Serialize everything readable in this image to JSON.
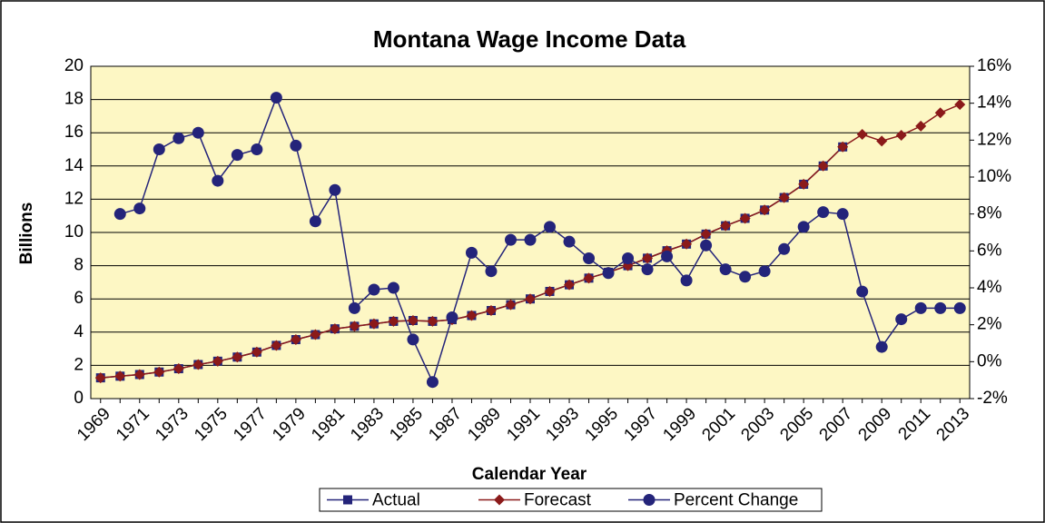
{
  "chart_data": {
    "type": "line",
    "title": "Montana Wage Income Data",
    "y_label": "Billions",
    "x_label": "Calendar Year",
    "categories": [
      "1969",
      null,
      "1971",
      null,
      "1973",
      null,
      "1975",
      null,
      "1977",
      null,
      "1979",
      null,
      "1981",
      null,
      "1983",
      null,
      "1985",
      null,
      "1987",
      null,
      "1989",
      null,
      "1991",
      null,
      "1993",
      null,
      "1995",
      null,
      "1997",
      null,
      "1999",
      null,
      "2001",
      null,
      "2003",
      null,
      "2005",
      null,
      "2007",
      null,
      "2009",
      null,
      "2011",
      null,
      "2013"
    ],
    "series": [
      {
        "name": "Actual",
        "color": "#24247a",
        "marker": "square",
        "values": [
          1.25,
          1.35,
          1.45,
          1.6,
          1.8,
          2.05,
          2.25,
          2.5,
          2.8,
          3.2,
          3.55,
          3.85,
          4.2,
          4.35,
          4.5,
          4.65,
          4.7,
          4.65,
          4.75,
          5.0,
          5.3,
          5.65,
          6.0,
          6.45,
          6.85,
          7.25,
          7.6,
          8.0,
          8.45,
          8.9,
          9.3,
          9.9,
          10.4,
          10.85,
          11.35,
          12.1,
          12.9,
          14.0,
          15.15,
          null,
          null,
          null,
          null,
          null,
          null
        ]
      },
      {
        "name": "Forecast",
        "color": "#8b1a1a",
        "marker": "diamond",
        "values": [
          1.25,
          1.35,
          1.45,
          1.6,
          1.8,
          2.05,
          2.25,
          2.5,
          2.8,
          3.2,
          3.55,
          3.85,
          4.2,
          4.35,
          4.5,
          4.65,
          4.7,
          4.65,
          4.75,
          5.0,
          5.3,
          5.65,
          6.0,
          6.45,
          6.85,
          7.25,
          7.6,
          8.0,
          8.45,
          8.9,
          9.3,
          9.9,
          10.4,
          10.85,
          11.35,
          12.1,
          12.9,
          14.0,
          15.15,
          15.9,
          15.5,
          15.85,
          16.4,
          17.2,
          17.7
        ]
      },
      {
        "name": "Percent Change",
        "color": "#24247a",
        "marker": "circle",
        "axis": "y2",
        "values": [
          null,
          8.0,
          8.3,
          11.5,
          12.1,
          12.4,
          9.8,
          11.2,
          11.5,
          14.3,
          11.7,
          7.6,
          9.3,
          2.9,
          3.9,
          4.0,
          1.2,
          -1.1,
          2.4,
          5.9,
          4.9,
          6.6,
          6.6,
          7.3,
          6.5,
          5.6,
          4.8,
          5.6,
          5.0,
          5.7,
          4.4,
          6.3,
          5.0,
          4.6,
          4.9,
          6.1,
          7.3,
          8.1,
          8.0,
          3.8,
          0.8,
          2.3,
          2.9,
          2.9,
          2.9
        ]
      }
    ],
    "ylim": [
      0,
      20
    ],
    "yticks": [
      0,
      2,
      4,
      6,
      8,
      10,
      12,
      14,
      16,
      18,
      20
    ],
    "y2lim": [
      -2,
      16
    ],
    "y2ticks": [
      {
        "value": -2,
        "label": "-2%"
      },
      {
        "value": 0,
        "label": "0%"
      },
      {
        "value": 2,
        "label": "2%"
      },
      {
        "value": 4,
        "label": "4%"
      },
      {
        "value": 6,
        "label": "6%"
      },
      {
        "value": 8,
        "label": "8%"
      },
      {
        "value": 10,
        "label": "10%"
      },
      {
        "value": 12,
        "label": "12%"
      },
      {
        "value": 14,
        "label": "14%"
      },
      {
        "value": 16,
        "label": "16%"
      }
    ],
    "grid": true,
    "legend": "bottom",
    "plot_background": "#fdf7c4"
  }
}
